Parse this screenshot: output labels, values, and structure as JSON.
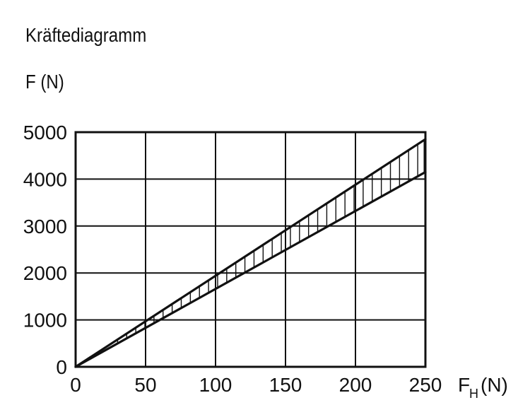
{
  "chart_data": {
    "type": "area",
    "title": "Kräftediagramm",
    "ylabel": "F (N)",
    "xlabel_main": "F",
    "xlabel_sub": "H",
    "xlabel_unit": "(N)",
    "x_ticks": [
      0,
      50,
      100,
      150,
      200,
      250
    ],
    "y_ticks": [
      0,
      1000,
      2000,
      3000,
      4000,
      5000
    ],
    "xlim": [
      0,
      250
    ],
    "ylim": [
      0,
      5000
    ],
    "grid": true,
    "series": [
      {
        "x": [
          0,
          250
        ],
        "y": [
          0,
          4850
        ]
      },
      {
        "x": [
          0,
          250
        ],
        "y": [
          0,
          4150
        ]
      }
    ],
    "band_hatch": "vertical"
  }
}
